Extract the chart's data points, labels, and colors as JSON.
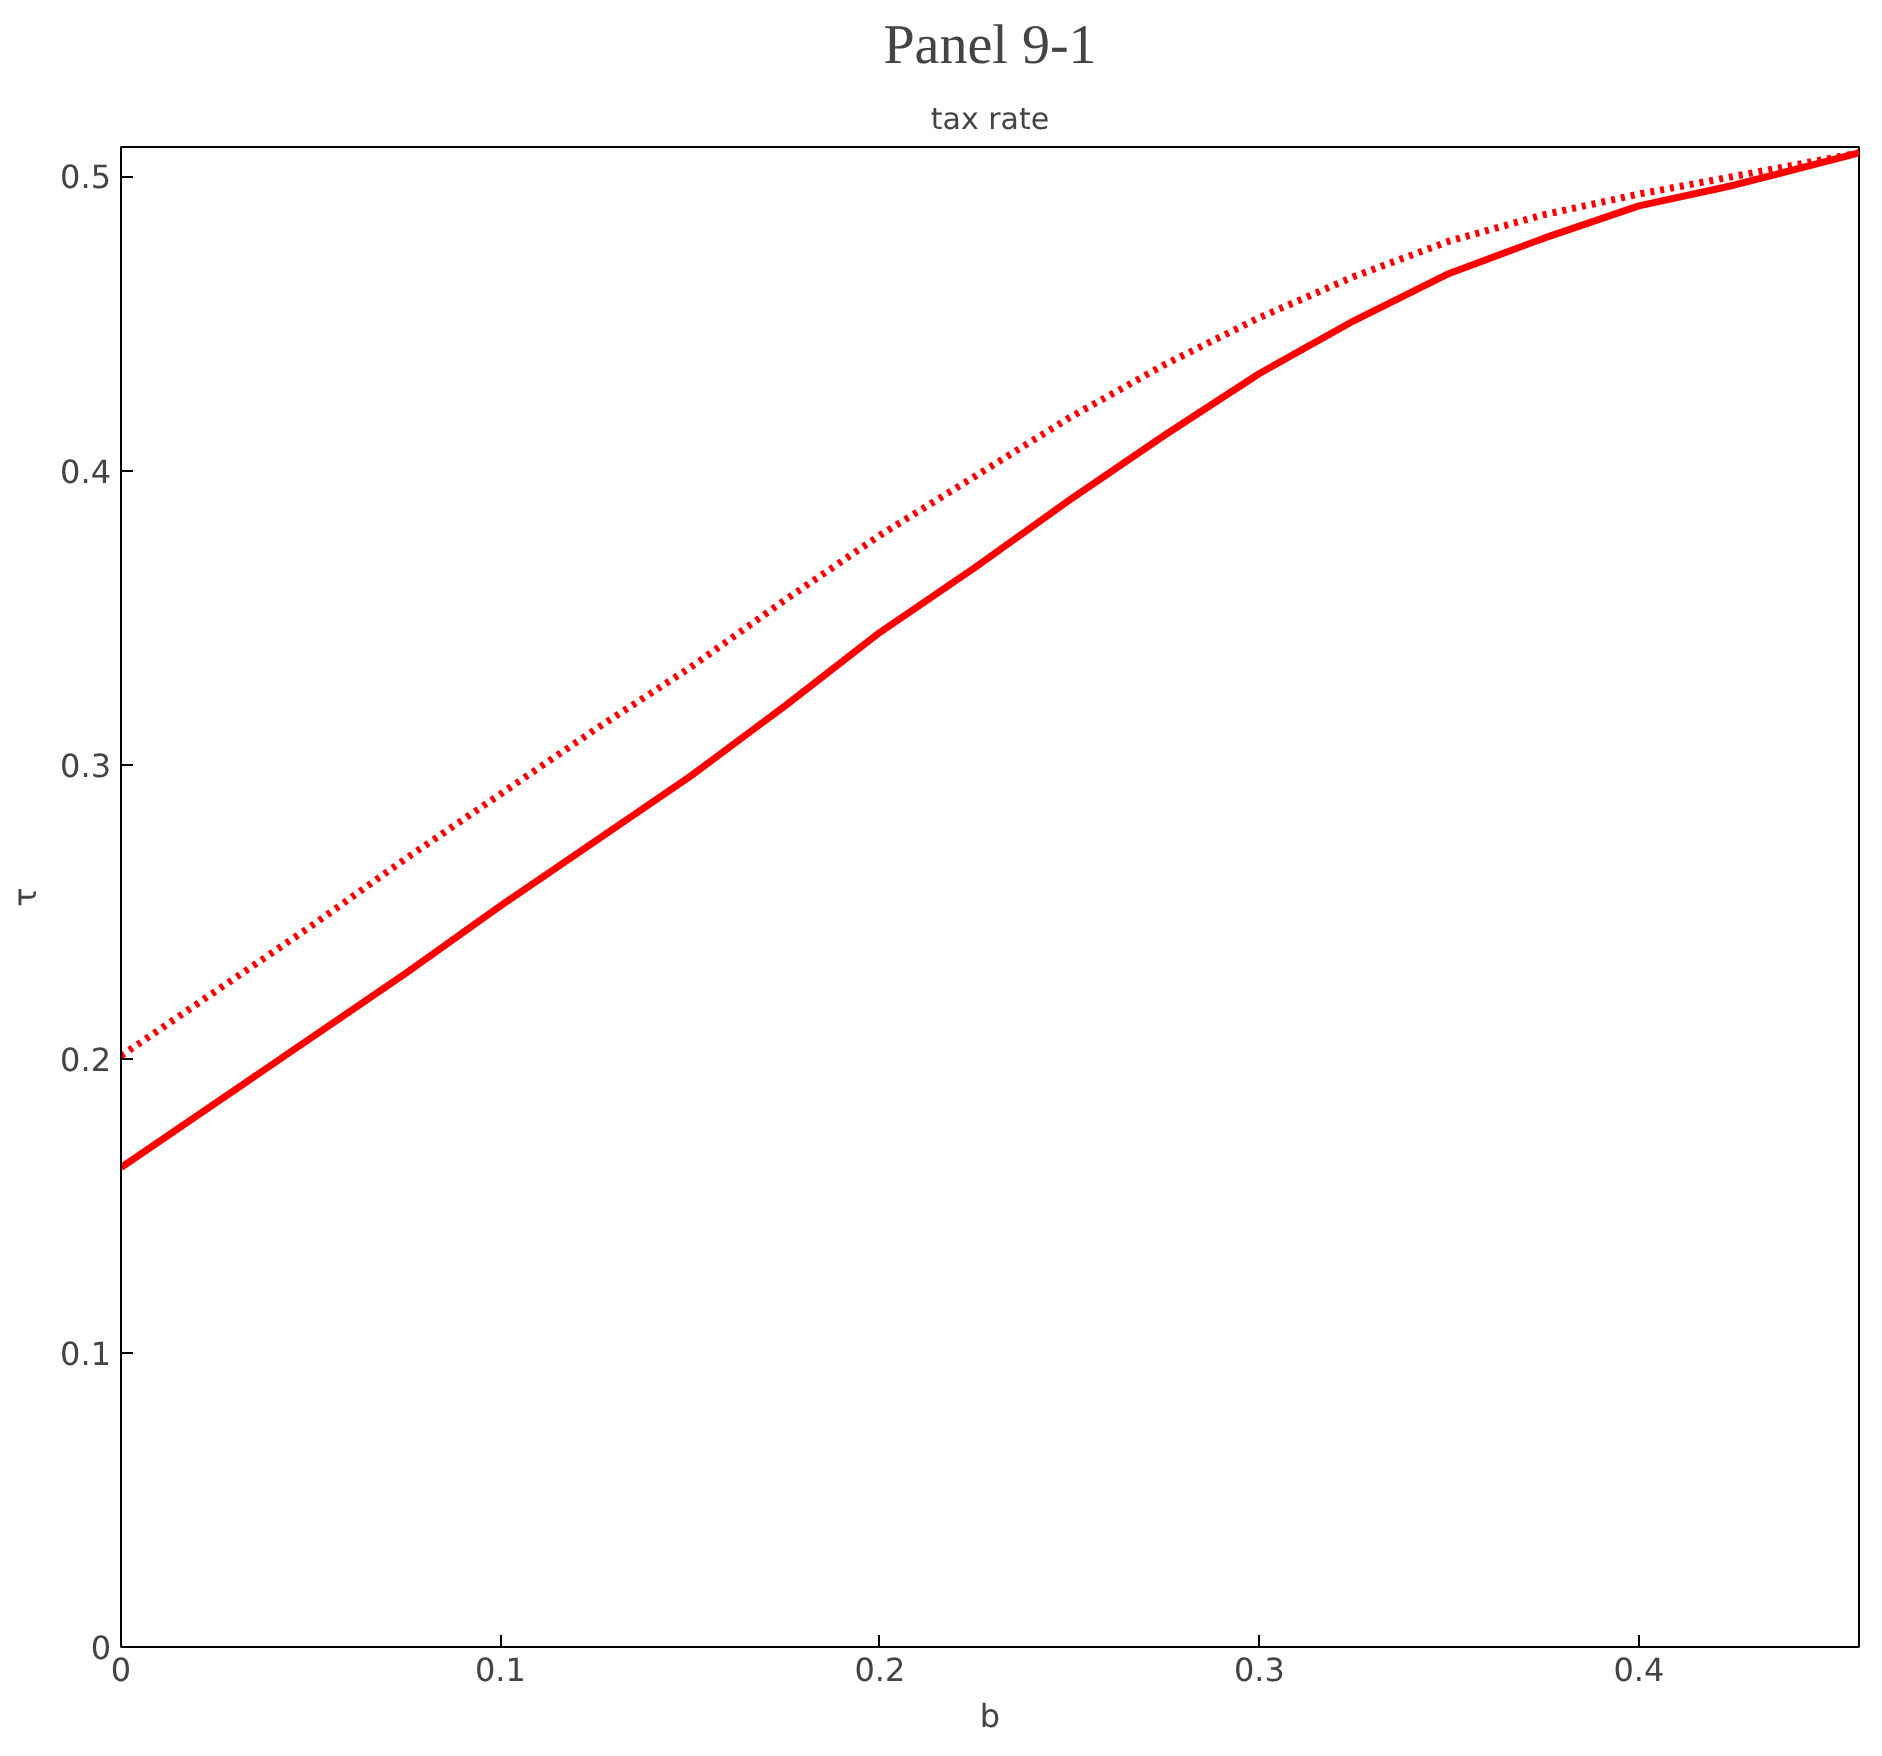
{
  "chart_data": {
    "type": "line",
    "title": "Panel 9-1",
    "subtitle": "tax rate",
    "xlabel": "b",
    "ylabel": "τ",
    "xlim": [
      0,
      0.458
    ],
    "ylim": [
      0,
      0.51
    ],
    "xticks": [
      0,
      0.1,
      0.2,
      0.3,
      0.4
    ],
    "yticks": [
      0,
      0.1,
      0.2,
      0.3,
      0.4,
      0.5
    ],
    "grid": false,
    "series": [
      {
        "color": "#ff0000",
        "line_style": "solid",
        "x": [
          0,
          0.025,
          0.05,
          0.075,
          0.1,
          0.125,
          0.15,
          0.175,
          0.2,
          0.225,
          0.25,
          0.275,
          0.3,
          0.325,
          0.35,
          0.375,
          0.4,
          0.425,
          0.458
        ],
        "values": [
          0.163,
          0.185,
          0.207,
          0.229,
          0.252,
          0.274,
          0.296,
          0.32,
          0.345,
          0.367,
          0.39,
          0.412,
          0.433,
          0.451,
          0.467,
          0.479,
          0.49,
          0.497,
          0.508
        ]
      },
      {
        "color": "#ff0000",
        "line_style": "dotted",
        "x": [
          0,
          0.025,
          0.05,
          0.075,
          0.1,
          0.125,
          0.15,
          0.175,
          0.2,
          0.225,
          0.25,
          0.275,
          0.3,
          0.325,
          0.35,
          0.375,
          0.4,
          0.425,
          0.458
        ],
        "values": [
          0.201,
          0.223,
          0.245,
          0.268,
          0.29,
          0.312,
          0.333,
          0.356,
          0.378,
          0.398,
          0.418,
          0.436,
          0.452,
          0.466,
          0.478,
          0.487,
          0.494,
          0.5,
          0.508
        ]
      }
    ]
  }
}
